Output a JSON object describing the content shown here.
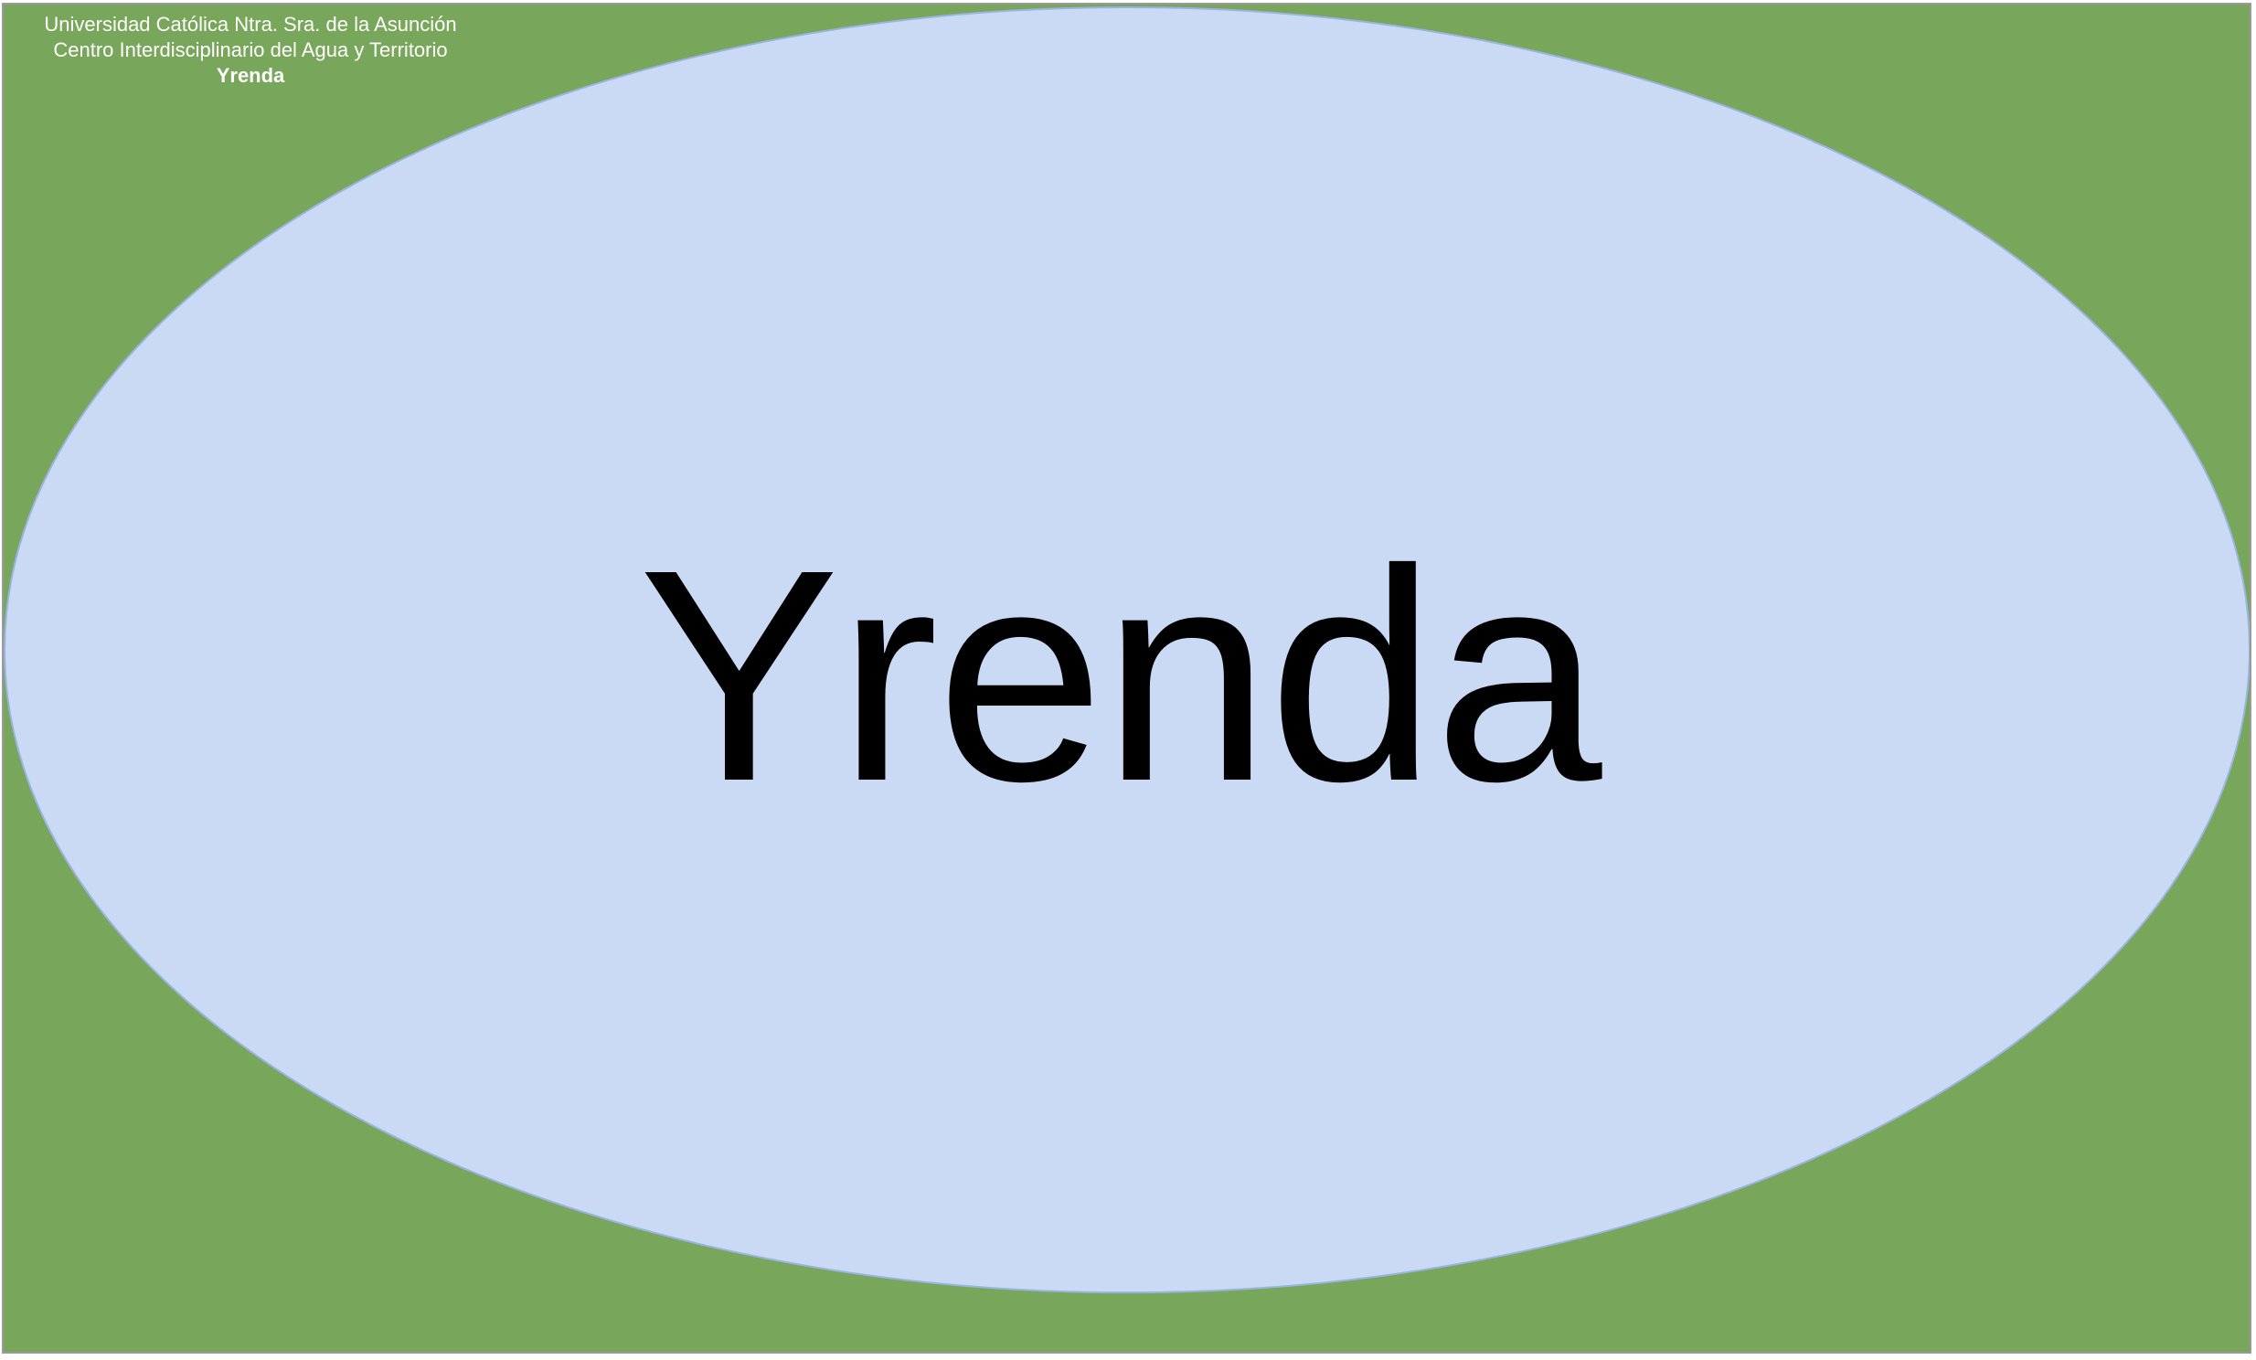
{
  "colors": {
    "background": "#78a65a",
    "ellipse_fill": "#cad9f4",
    "ellipse_stroke": "#98b4df",
    "header_text": "#ffffff",
    "label_text": "#000000"
  },
  "header": {
    "line1": "Universidad Católica Ntra. Sra. de la Asunción",
    "line2": "Centro Interdisciplinario del Agua y Territorio",
    "line3": "Yrenda"
  },
  "diagram": {
    "main_label": "Yrenda"
  }
}
